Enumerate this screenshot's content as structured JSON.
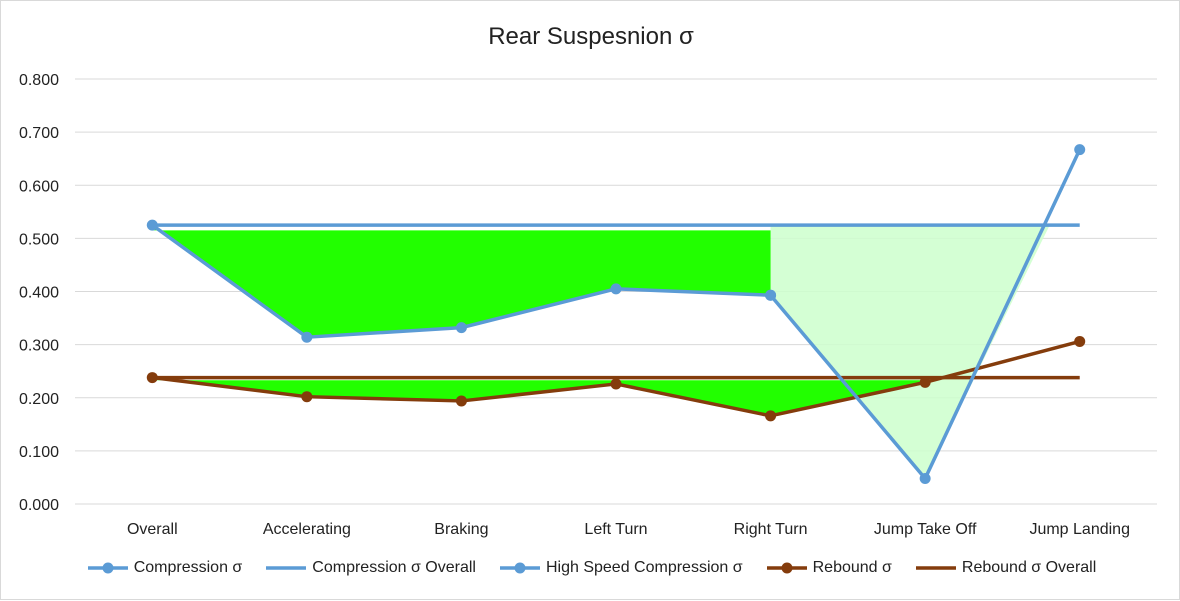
{
  "chart_data": {
    "type": "line",
    "title": "Rear Suspesnion σ",
    "xlabel": "",
    "ylabel": "",
    "categories": [
      "Overall",
      "Accelerating",
      "Braking",
      "Left Turn",
      "Right Turn",
      "Jump Take Off",
      "Jump Landing"
    ],
    "ylim": [
      0,
      0.8
    ],
    "yticks": [
      "0.000",
      "0.100",
      "0.200",
      "0.300",
      "0.400",
      "0.500",
      "0.600",
      "0.700",
      "0.800"
    ],
    "grid": true,
    "legend_position": "bottom",
    "series": [
      {
        "name": "Compression σ",
        "values": [
          0.525,
          0.314,
          0.332,
          0.405,
          0.393,
          0.048,
          0.667
        ],
        "color": "#5b9bd5",
        "markers": true,
        "show": [
          true,
          true,
          true,
          true,
          true,
          false,
          false
        ]
      },
      {
        "name": "Compression σ Overall",
        "values": [
          0.525,
          0.525,
          0.525,
          0.525,
          0.525,
          0.525,
          0.525
        ],
        "color": "#5b9bd5",
        "markers": false
      },
      {
        "name": "High Speed Compression σ",
        "values": [
          null,
          null,
          null,
          null,
          0.393,
          0.048,
          0.667
        ],
        "color": "#5b9bd5",
        "markers": true
      },
      {
        "name": "Rebound σ",
        "values": [
          0.238,
          0.202,
          0.194,
          0.226,
          0.166,
          0.229,
          0.306
        ],
        "color": "#843c0c",
        "markers": true
      },
      {
        "name": "Rebound σ Overall",
        "values": [
          0.238,
          0.238,
          0.238,
          0.238,
          0.238,
          0.238,
          0.238
        ],
        "color": "#843c0c",
        "markers": false
      }
    ],
    "fill_colors": {
      "primary": "#22ff00",
      "light": "#ccffcc"
    }
  }
}
